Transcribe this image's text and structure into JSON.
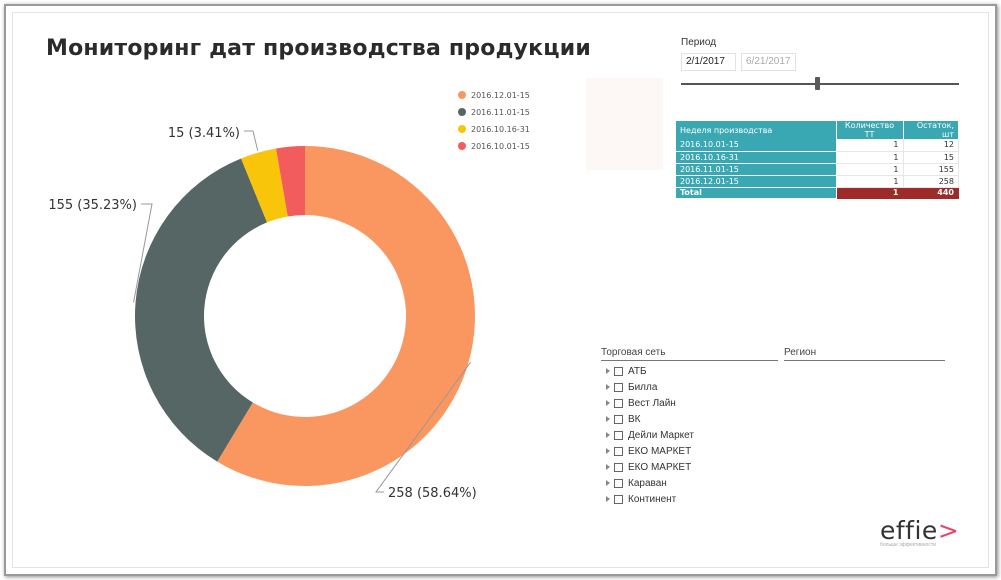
{
  "title": "Мониторинг дат производства продукции",
  "chart_data": {
    "type": "pie",
    "variant": "donut",
    "title": "Мониторинг дат производства продукции",
    "legend_position": "top-right",
    "slices": [
      {
        "name": "2016.12.01-15",
        "value": 258,
        "percent": "58.64%",
        "label": "258 (58.64%)",
        "color": "#fa9660"
      },
      {
        "name": "2016.11.01-15",
        "value": 155,
        "percent": "35.23%",
        "label": "155 (35.23%)",
        "color": "#566664"
      },
      {
        "name": "2016.10.16-31",
        "value": 15,
        "percent": "3.41%",
        "label": "15 (3.41%)",
        "color": "#f8c50a"
      },
      {
        "name": "2016.10.01-15",
        "value": 12,
        "percent": "2.73%",
        "label": "",
        "color": "#f25c5c"
      }
    ]
  },
  "period": {
    "title": "Период",
    "start": "2/1/2017",
    "end": "6/21/2017",
    "slider_value": 0.49
  },
  "table": {
    "headers": [
      "Неделя производства",
      "Количество ТТ",
      "Остаток, шт"
    ],
    "rows": [
      [
        "2016.10.01-15",
        "1",
        "12"
      ],
      [
        "2016.10.16-31",
        "1",
        "15"
      ],
      [
        "2016.11.01-15",
        "1",
        "155"
      ],
      [
        "2016.12.01-15",
        "1",
        "258"
      ]
    ],
    "total": [
      "Total",
      "1",
      "440"
    ]
  },
  "slicers": {
    "chain_label": "Торговая сеть",
    "region_label": "Регион",
    "chains": [
      "АТБ",
      "Билла",
      "Вест Лайн",
      "ВК",
      "Дейли Маркет",
      "ЕКО МАРКЕТ",
      "ЕКО МАРКЕТ",
      "Караван",
      "Континент"
    ]
  },
  "logo": {
    "text": "effie",
    "arrow": ">",
    "tagline": "больше эффективности"
  }
}
